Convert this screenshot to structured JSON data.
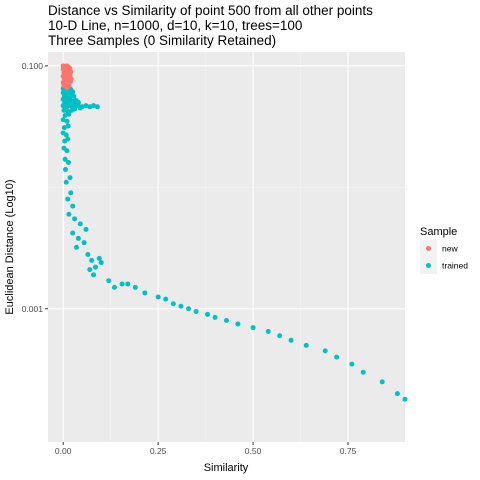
{
  "chart_data": {
    "type": "scatter",
    "title_lines": [
      "Distance vs Similarity of point 500 from all other points",
      "10-D Line, n=1000, d=10, k=10, trees=100",
      "Three Samples (0 Similarity Retained)"
    ],
    "xlabel": "Similarity",
    "ylabel": "Euclidean Distance (Log10)",
    "x_ticks": [
      0,
      0.25,
      0.5,
      0.75
    ],
    "x_tick_labels": [
      "0.00",
      "0.25",
      "0.50",
      "0.75"
    ],
    "xlim": [
      -0.04,
      0.9
    ],
    "y_scale": "log10",
    "y_ticks": [
      0.001,
      0.1
    ],
    "y_tick_labels": [
      "0.001",
      "0.100"
    ],
    "ylim": [
      8e-05,
      0.13
    ],
    "grid": true,
    "legend_position": "right",
    "legend": {
      "title": "Sample",
      "entries": [
        {
          "label": "new",
          "color": "#F8766D"
        },
        {
          "label": "trained",
          "color": "#00BFC4"
        }
      ]
    },
    "series": [
      {
        "name": "new",
        "color": "#F8766D",
        "points": [
          [
            0.0,
            0.1
          ],
          [
            0.005,
            0.098
          ],
          [
            0.01,
            0.1
          ],
          [
            0.015,
            0.097
          ],
          [
            0.0,
            0.094
          ],
          [
            0.006,
            0.091
          ],
          [
            0.012,
            0.093
          ],
          [
            0.018,
            0.095
          ],
          [
            0.002,
            0.088
          ],
          [
            0.008,
            0.085
          ],
          [
            0.014,
            0.087
          ],
          [
            0.02,
            0.089
          ],
          [
            0.0,
            0.082
          ],
          [
            0.005,
            0.08
          ],
          [
            0.011,
            0.082
          ],
          [
            0.017,
            0.079
          ],
          [
            0.003,
            0.077
          ],
          [
            0.009,
            0.075
          ],
          [
            0.015,
            0.076
          ],
          [
            0.021,
            0.078
          ],
          [
            0.0,
            0.073
          ],
          [
            0.007,
            0.071
          ],
          [
            0.013,
            0.072
          ],
          [
            0.019,
            0.074
          ],
          [
            0.002,
            0.069
          ],
          [
            0.008,
            0.067
          ],
          [
            0.014,
            0.068
          ],
          [
            0.004,
            0.07
          ],
          [
            0.01,
            0.066
          ],
          [
            0.016,
            0.069
          ],
          [
            0.001,
            0.096
          ],
          [
            0.003,
            0.084
          ],
          [
            0.006,
            0.078
          ],
          [
            0.012,
            0.07
          ],
          [
            0.018,
            0.083
          ]
        ]
      },
      {
        "name": "trained",
        "color": "#00BFC4",
        "points": [
          [
            0.0,
            0.065
          ],
          [
            0.005,
            0.063
          ],
          [
            0.01,
            0.065
          ],
          [
            0.015,
            0.062
          ],
          [
            0.02,
            0.064
          ],
          [
            0.025,
            0.061
          ],
          [
            0.0,
            0.06
          ],
          [
            0.008,
            0.059
          ],
          [
            0.016,
            0.061
          ],
          [
            0.024,
            0.058
          ],
          [
            0.003,
            0.056
          ],
          [
            0.012,
            0.055
          ],
          [
            0.02,
            0.057
          ],
          [
            0.028,
            0.056
          ],
          [
            0.0,
            0.053
          ],
          [
            0.01,
            0.052
          ],
          [
            0.018,
            0.054
          ],
          [
            0.026,
            0.051
          ],
          [
            0.034,
            0.052
          ],
          [
            0.004,
            0.05
          ],
          [
            0.014,
            0.049
          ],
          [
            0.022,
            0.05
          ],
          [
            0.03,
            0.049
          ],
          [
            0.04,
            0.05
          ],
          [
            0.0,
            0.047
          ],
          [
            0.01,
            0.046
          ],
          [
            0.02,
            0.047
          ],
          [
            0.03,
            0.046
          ],
          [
            0.04,
            0.047
          ],
          [
            0.05,
            0.046
          ],
          [
            0.06,
            0.047
          ],
          [
            0.07,
            0.046
          ],
          [
            0.08,
            0.047
          ],
          [
            0.09,
            0.046
          ],
          [
            0.03,
            0.044
          ],
          [
            0.045,
            0.045
          ],
          [
            0.002,
            0.043
          ],
          [
            0.012,
            0.042
          ],
          [
            0.022,
            0.043
          ],
          [
            0.005,
            0.039
          ],
          [
            0.015,
            0.04
          ],
          [
            0.0,
            0.036
          ],
          [
            0.01,
            0.035
          ],
          [
            0.003,
            0.031
          ],
          [
            0.013,
            0.032
          ],
          [
            0.0,
            0.028
          ],
          [
            0.008,
            0.027
          ],
          [
            0.004,
            0.024
          ],
          [
            0.012,
            0.025
          ],
          [
            0.002,
            0.021
          ],
          [
            0.01,
            0.02
          ],
          [
            0.005,
            0.017
          ],
          [
            0.014,
            0.016
          ],
          [
            0.006,
            0.014
          ],
          [
            0.018,
            0.012
          ],
          [
            0.008,
            0.011
          ],
          [
            0.02,
            0.009
          ],
          [
            0.012,
            0.008
          ],
          [
            0.025,
            0.007
          ],
          [
            0.015,
            0.006
          ],
          [
            0.03,
            0.0055
          ],
          [
            0.045,
            0.005
          ],
          [
            0.06,
            0.0045
          ],
          [
            0.025,
            0.0042
          ],
          [
            0.04,
            0.0038
          ],
          [
            0.055,
            0.0035
          ],
          [
            0.035,
            0.0032
          ],
          [
            0.065,
            0.0028
          ],
          [
            0.075,
            0.0025
          ],
          [
            0.095,
            0.0026
          ],
          [
            0.1,
            0.0024
          ],
          [
            0.085,
            0.0022
          ],
          [
            0.07,
            0.0021
          ],
          [
            0.08,
            0.0019
          ],
          [
            0.12,
            0.0017
          ],
          [
            0.155,
            0.0016
          ],
          [
            0.135,
            0.0015
          ],
          [
            0.17,
            0.0016
          ],
          [
            0.19,
            0.0015
          ],
          [
            0.215,
            0.00135
          ],
          [
            0.25,
            0.00125
          ],
          [
            0.27,
            0.0012
          ],
          [
            0.29,
            0.0011
          ],
          [
            0.31,
            0.00105
          ],
          [
            0.33,
            0.001
          ],
          [
            0.35,
            0.00095
          ],
          [
            0.38,
            0.0009
          ],
          [
            0.4,
            0.00085
          ],
          [
            0.43,
            0.0008
          ],
          [
            0.46,
            0.00075
          ],
          [
            0.5,
            0.0007
          ],
          [
            0.54,
            0.00065
          ],
          [
            0.57,
            0.0006
          ],
          [
            0.6,
            0.00055
          ],
          [
            0.64,
            0.0005
          ],
          [
            0.69,
            0.00045
          ],
          [
            0.72,
            0.0004
          ],
          [
            0.76,
            0.00035
          ],
          [
            0.79,
            0.0003
          ],
          [
            0.84,
            0.00025
          ],
          [
            0.88,
            0.0002
          ],
          [
            0.9,
            0.00018
          ]
        ]
      }
    ]
  }
}
